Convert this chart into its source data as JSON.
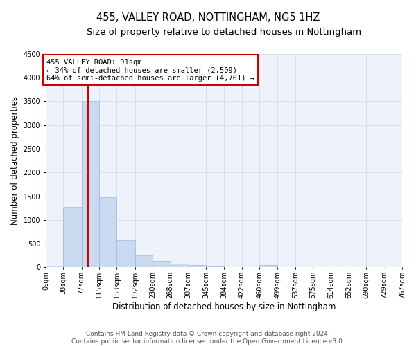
{
  "title": "455, VALLEY ROAD, NOTTINGHAM, NG5 1HZ",
  "subtitle": "Size of property relative to detached houses in Nottingham",
  "xlabel": "Distribution of detached houses by size in Nottingham",
  "ylabel": "Number of detached properties",
  "bin_edges": [
    0,
    38,
    77,
    115,
    153,
    192,
    230,
    268,
    307,
    345,
    384,
    422,
    460,
    499,
    537,
    575,
    614,
    652,
    690,
    729,
    767
  ],
  "bin_counts": [
    30,
    1270,
    3500,
    1480,
    580,
    250,
    130,
    75,
    45,
    20,
    10,
    8,
    50,
    5,
    3,
    2,
    1,
    1,
    1,
    1
  ],
  "bar_color": "#c9d9f0",
  "bar_edge_color": "#a0b8d8",
  "grid_color": "#d0d8e8",
  "background_color": "#eef2fb",
  "property_line_x": 91,
  "property_line_color": "#cc0000",
  "annotation_line1": "455 VALLEY ROAD: 91sqm",
  "annotation_line2": "← 34% of detached houses are smaller (2,509)",
  "annotation_line3": "64% of semi-detached houses are larger (4,701) →",
  "annotation_box_color": "#cc0000",
  "ylim": [
    0,
    4500
  ],
  "tick_labels": [
    "0sqm",
    "38sqm",
    "77sqm",
    "115sqm",
    "153sqm",
    "192sqm",
    "230sqm",
    "268sqm",
    "307sqm",
    "345sqm",
    "384sqm",
    "422sqm",
    "460sqm",
    "499sqm",
    "537sqm",
    "575sqm",
    "614sqm",
    "652sqm",
    "690sqm",
    "729sqm",
    "767sqm"
  ],
  "footer_text": "Contains HM Land Registry data © Crown copyright and database right 2024.\nContains public sector information licensed under the Open Government Licence v3.0.",
  "title_fontsize": 10.5,
  "subtitle_fontsize": 9.5,
  "axis_label_fontsize": 8.5,
  "tick_fontsize": 7,
  "annotation_fontsize": 7.5,
  "footer_fontsize": 6.5
}
